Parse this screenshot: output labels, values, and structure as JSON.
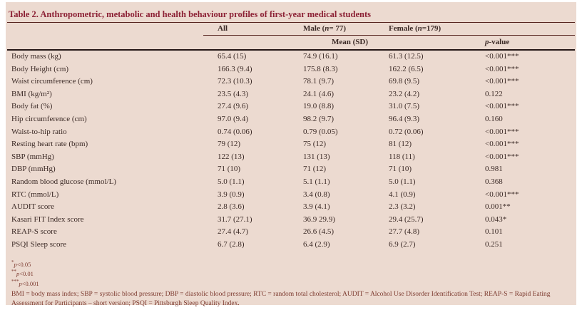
{
  "table": {
    "title": "Table 2. Anthropometric, metabolic and health behaviour profiles of first-year medical students",
    "columns": {
      "all": "All",
      "male_prefix": "Male (",
      "male_suffix": "= 77)",
      "female_prefix": "Female (",
      "female_suffix": "=179)",
      "n_symbol": "n",
      "mean_sd": "Mean (SD)",
      "p_symbol": "p",
      "p_value_suffix": "-value"
    },
    "rows": [
      {
        "label": "Body mass (kg)",
        "all": "65.4 (15)",
        "male": "74.9 (16.1)",
        "female": "61.3 (12.5)",
        "p": "<0.001***"
      },
      {
        "label": "Body Height (cm)",
        "all": "166.3 (9.4)",
        "male": "175.8 (8.3)",
        "female": "162.2 (6.5)",
        "p": "<0.001***"
      },
      {
        "label": "Waist circumference (cm)",
        "all": "72.3 (10.3)",
        "male": "78.1 (9.7)",
        "female": "69.8 (9.5)",
        "p": "<0.001***"
      },
      {
        "label": "BMI (kg/m²)",
        "all": "23.5 (4.3)",
        "male": "24.1 (4.6)",
        "female": "23.2 (4.2)",
        "p": "0.122"
      },
      {
        "label": "Body fat (%)",
        "all": "27.4 (9.6)",
        "male": "19.0 (8.8)",
        "female": "31.0 (7.5)",
        "p": "<0.001***"
      },
      {
        "label": "Hip circumference (cm)",
        "all": "97.0 (9.4)",
        "male": "98.2 (9.7)",
        "female": "96.4 (9.3)",
        "p": "0.160"
      },
      {
        "label": "Waist-to-hip ratio",
        "all": "0.74 (0.06)",
        "male": "0.79 (0.05)",
        "female": "0.72 (0.06)",
        "p": "<0.001***"
      },
      {
        "label": "Resting heart rate (bpm)",
        "all": "79 (12)",
        "male": "75 (12)",
        "female": "81 (12)",
        "p": "<0.001***"
      },
      {
        "label": "SBP (mmHg)",
        "all": "122 (13)",
        "male": "131 (13)",
        "female": "118 (11)",
        "p": "<0.001***"
      },
      {
        "label": "DBP (mmHg)",
        "all": "71 (10)",
        "male": "71 (12)",
        "female": "71 (10)",
        "p": "0.981"
      },
      {
        "label": "Random blood glucose (mmol/L)",
        "all": "5.0 (1.1)",
        "male": "5.1 (1.1)",
        "female": "5.0 (1.1)",
        "p": "0.368"
      },
      {
        "label": "RTC (mmol/L)",
        "all": "3.9 (0.9)",
        "male": "3.4 (0.8)",
        "female": "4.1 (0.9)",
        "p": "<0.001***"
      },
      {
        "label": "AUDIT score",
        "all": "2.8 (3.6)",
        "male": "3.9 (4.1)",
        "female": "2.3 (3.2)",
        "p": "0.001**"
      },
      {
        "label": "Kasari FIT Index score",
        "all": "31.7 (27.1)",
        "male": "36.9 29.9)",
        "female": "29.4 (25.7)",
        "p": "0.043*"
      },
      {
        "label": "REAP-S score",
        "all": "27.4 (4.7)",
        "male": "26.6 (4.5)",
        "female": "27.7 (4.8)",
        "p": "0.101"
      },
      {
        "label": "PSQI Sleep score",
        "all": "6.7 (2.8)",
        "male": "6.4 (2.9)",
        "female": "6.9 (2.7)",
        "p": "0.251"
      }
    ]
  },
  "footnotes": {
    "sig": [
      {
        "stars": "*",
        "cond": "<0.05"
      },
      {
        "stars": "**",
        "cond": "<0.01"
      },
      {
        "stars": "***",
        "cond": "<0.001"
      }
    ],
    "abbreviations": "BMI = body mass index; SBP = systolic blood pressure; DBP = diastolic blood pressure; RTC = random total cholesterol; AUDIT = Alcohol Use Disorder Identification Test; REAP-S = Rapid Eating Assessment for Participants – short version; PSQI = Pittsburgh Sleep Quality Index."
  },
  "colors": {
    "panel_bg": "#ecdad0",
    "title": "#8c2135",
    "body_text": "#3b2a26",
    "footnote_text": "#7d3b30",
    "rule_maroon": "#56251f",
    "rule_dark": "#241716"
  }
}
